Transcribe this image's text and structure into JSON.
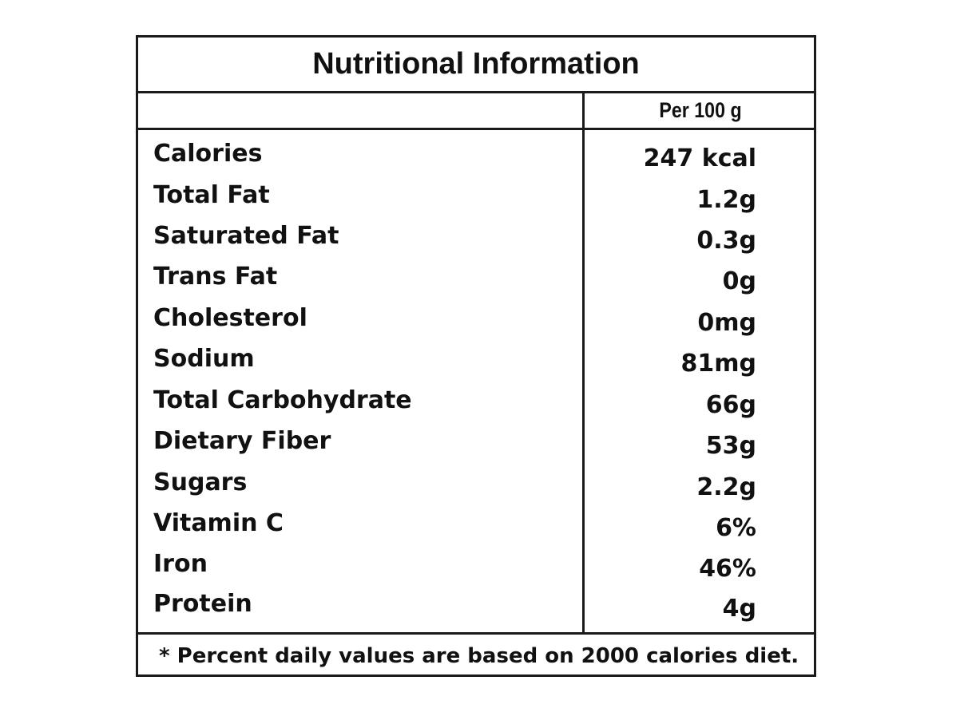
{
  "label": {
    "title": "Nutritional Information",
    "column_header": "Per 100 g",
    "rows": [
      {
        "name": "Calories",
        "value": "247 kcal"
      },
      {
        "name": "Total Fat",
        "value": "1.2g"
      },
      {
        "name": "Saturated Fat",
        "value": "0.3g"
      },
      {
        "name": "Trans Fat",
        "value": "0g"
      },
      {
        "name": "Cholesterol",
        "value": "0mg"
      },
      {
        "name": "Sodium",
        "value": "81mg"
      },
      {
        "name": "Total Carbohydrate",
        "value": "66g"
      },
      {
        "name": "Dietary Fiber",
        "value": "53g"
      },
      {
        "name": "Sugars",
        "value": "2.2g"
      },
      {
        "name": "Vitamin C",
        "value": "6%"
      },
      {
        "name": "Iron",
        "value": "46%"
      },
      {
        "name": "Protein",
        "value": "4g"
      }
    ],
    "footnote": "*  Percent daily values are based on 2000 calories diet."
  }
}
